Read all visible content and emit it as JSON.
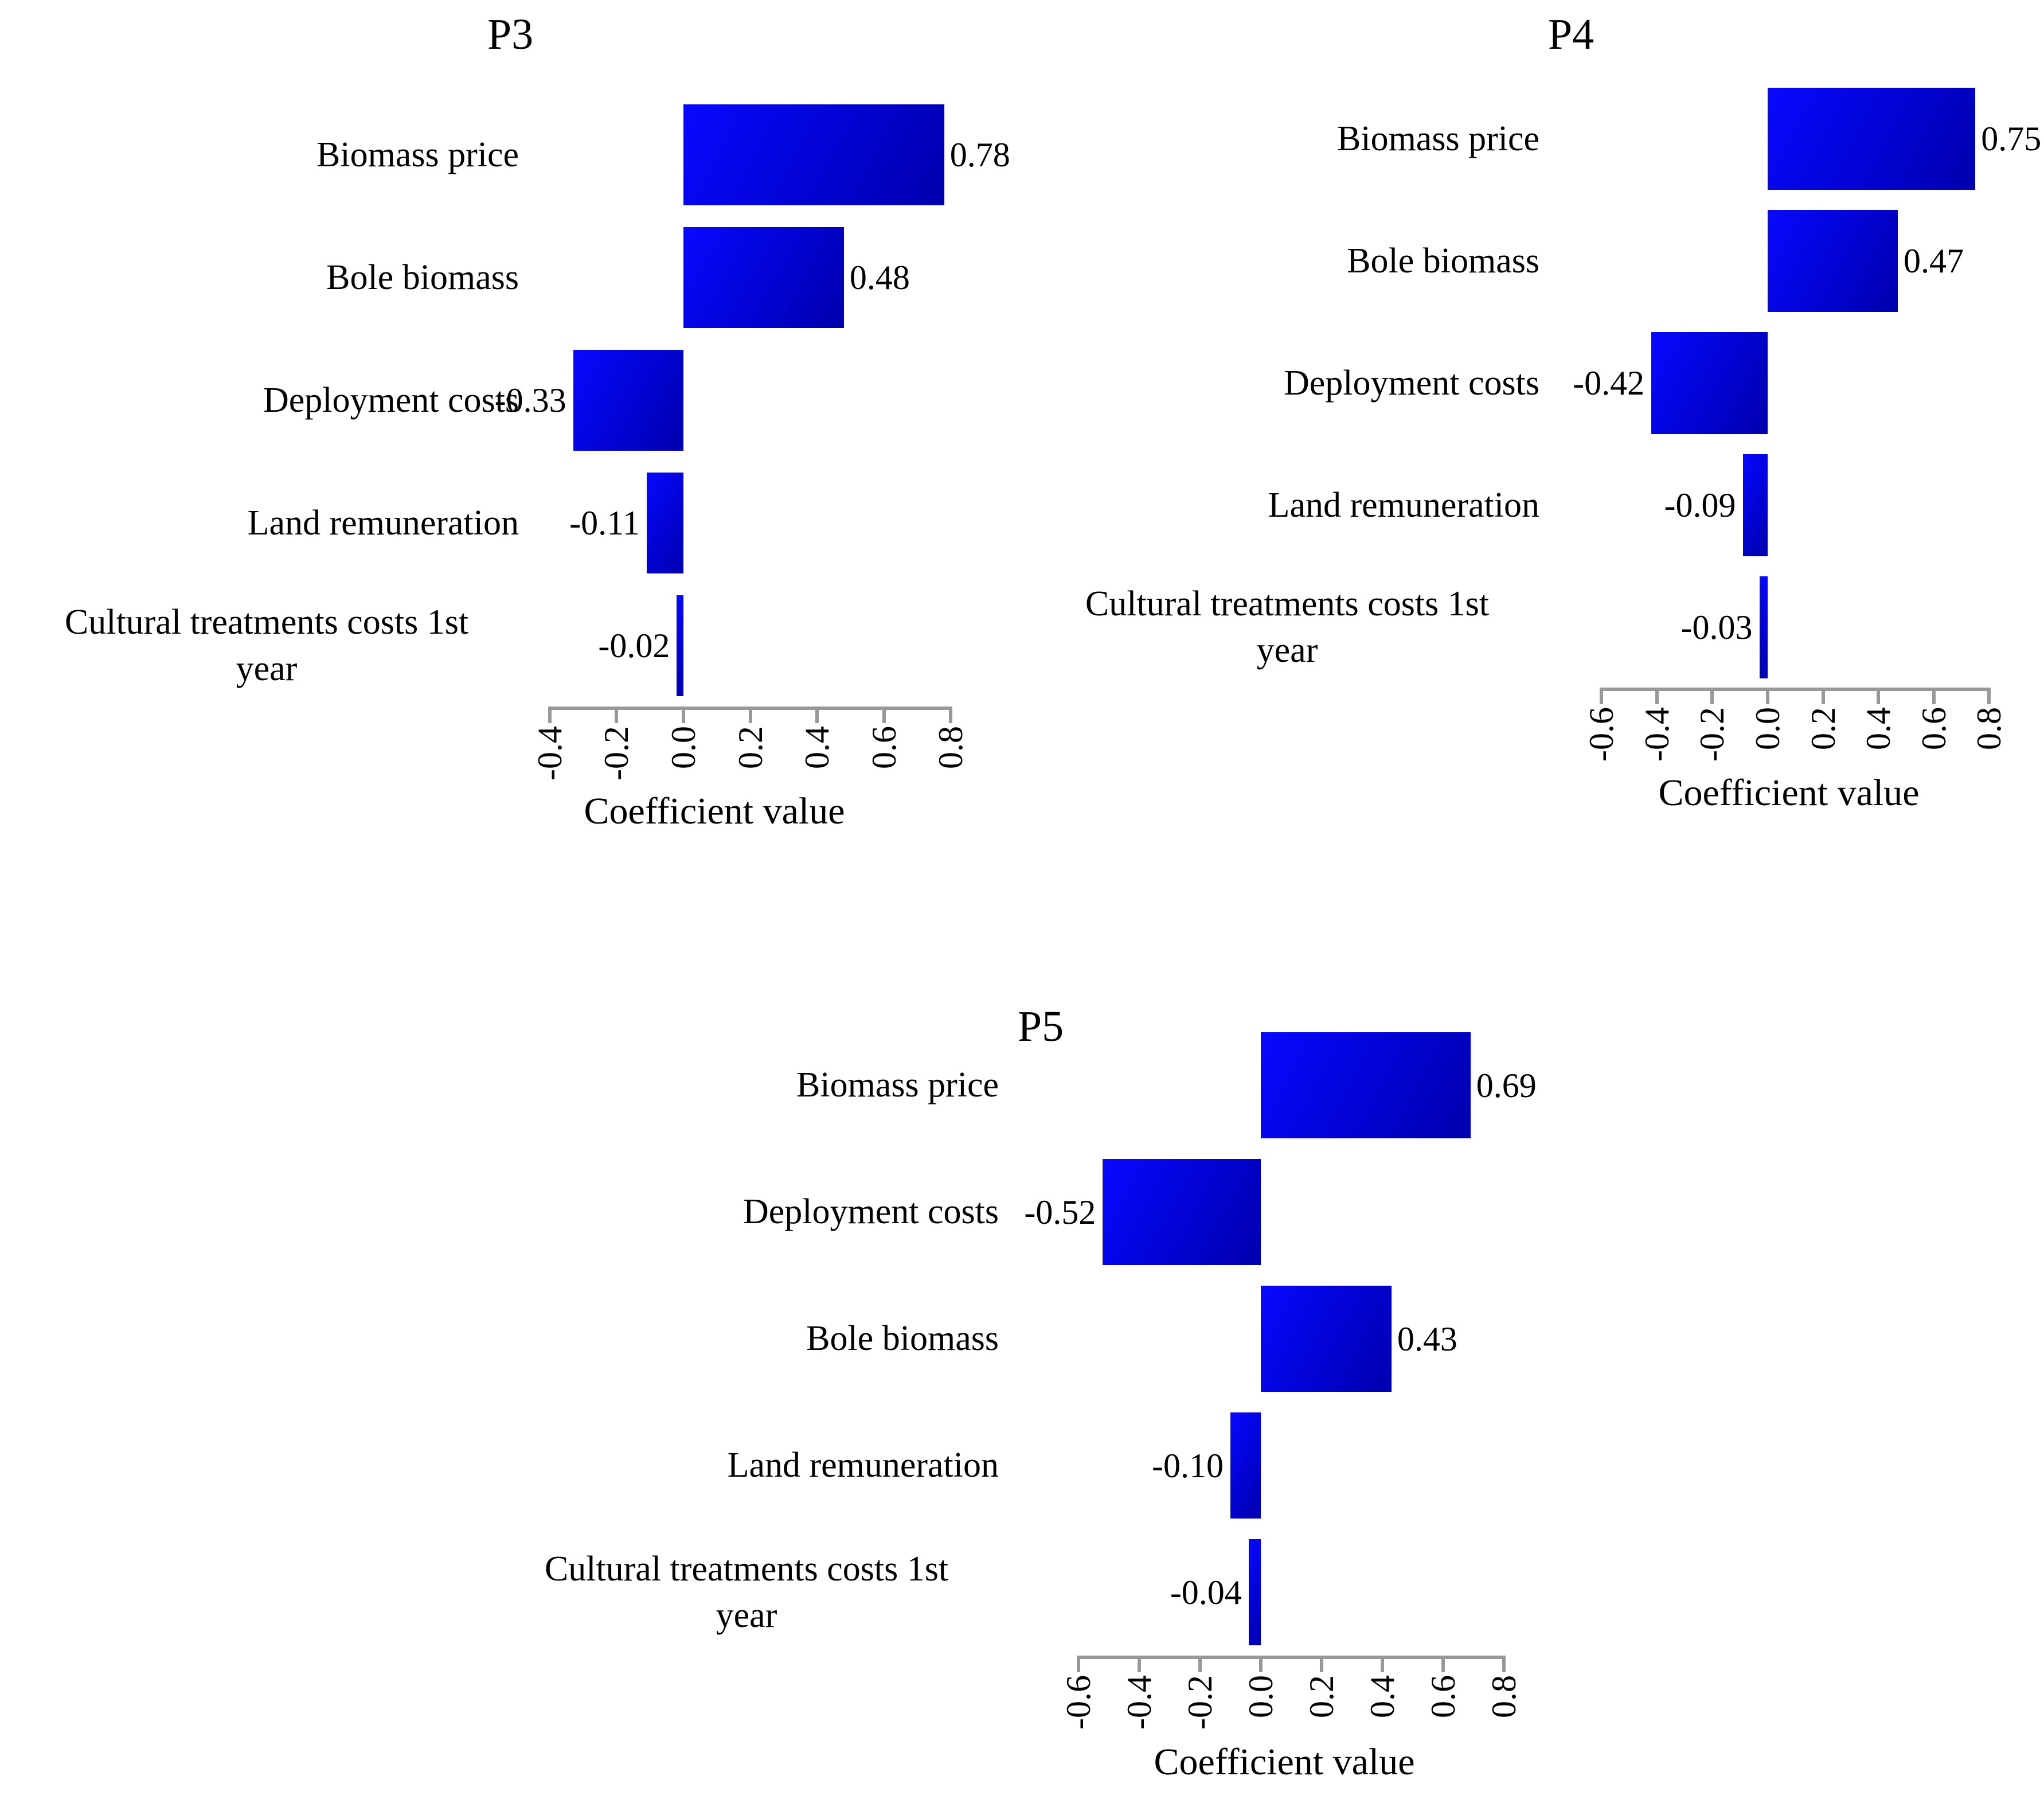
{
  "figure": {
    "background": "#ffffff",
    "bar_color_bright": "#0808ff",
    "bar_color_mid": "#0202d2",
    "bar_color_dark": "#0000ae",
    "axis_color": "#989898",
    "text_color": "#000000"
  },
  "chart_data": [
    {
      "type": "bar",
      "orientation": "horizontal",
      "title": "P3",
      "xlabel": "Coefficient value",
      "categories": [
        "Biomass price",
        "Bole biomass",
        "Deployment costs",
        "Land remuneration",
        "Cultural treatments costs 1st\nyear"
      ],
      "values": [
        0.78,
        0.48,
        -0.33,
        -0.11,
        -0.02
      ],
      "value_labels": [
        "0.78",
        "0.48",
        "-0.33",
        "-0.11",
        "-0.02"
      ],
      "xlim": [
        -0.4,
        0.8
      ],
      "xticks": [
        -0.4,
        -0.2,
        0.0,
        0.2,
        0.4,
        0.6,
        0.8
      ],
      "xtick_labels": [
        "-0.4",
        "-0.2",
        "0.0",
        "0.2",
        "0.4",
        "0.6",
        "0.8"
      ],
      "grid": false,
      "legend": null
    },
    {
      "type": "bar",
      "orientation": "horizontal",
      "title": "P4",
      "xlabel": "Coefficient value",
      "categories": [
        "Biomass price",
        "Bole biomass",
        "Deployment costs",
        "Land remuneration",
        "Cultural treatments costs 1st\nyear"
      ],
      "values": [
        0.75,
        0.47,
        -0.42,
        -0.09,
        -0.03
      ],
      "value_labels": [
        "0.75",
        "0.47",
        "-0.42",
        "-0.09",
        "-0.03"
      ],
      "xlim": [
        -0.6,
        0.8
      ],
      "xticks": [
        -0.6,
        -0.4,
        -0.2,
        0.0,
        0.2,
        0.4,
        0.6,
        0.8
      ],
      "xtick_labels": [
        "-0.6",
        "-0.4",
        "-0.2",
        "0.0",
        "0.2",
        "0.4",
        "0.6",
        "0.8"
      ],
      "grid": false,
      "legend": null
    },
    {
      "type": "bar",
      "orientation": "horizontal",
      "title": "P5",
      "xlabel": "Coefficient value",
      "categories": [
        "Biomass price",
        "Deployment costs",
        "Bole biomass",
        "Land remuneration",
        "Cultural treatments costs 1st\nyear"
      ],
      "values": [
        0.69,
        -0.52,
        0.43,
        -0.1,
        -0.04
      ],
      "value_labels": [
        "0.69",
        "-0.52",
        "0.43",
        "-0.10",
        "-0.04"
      ],
      "xlim": [
        -0.6,
        0.8
      ],
      "xticks": [
        -0.6,
        -0.4,
        -0.2,
        0.0,
        0.2,
        0.4,
        0.6,
        0.8
      ],
      "xtick_labels": [
        "-0.6",
        "-0.4",
        "-0.2",
        "0.0",
        "0.2",
        "0.4",
        "0.6",
        "0.8"
      ],
      "grid": false,
      "legend": null
    }
  ]
}
